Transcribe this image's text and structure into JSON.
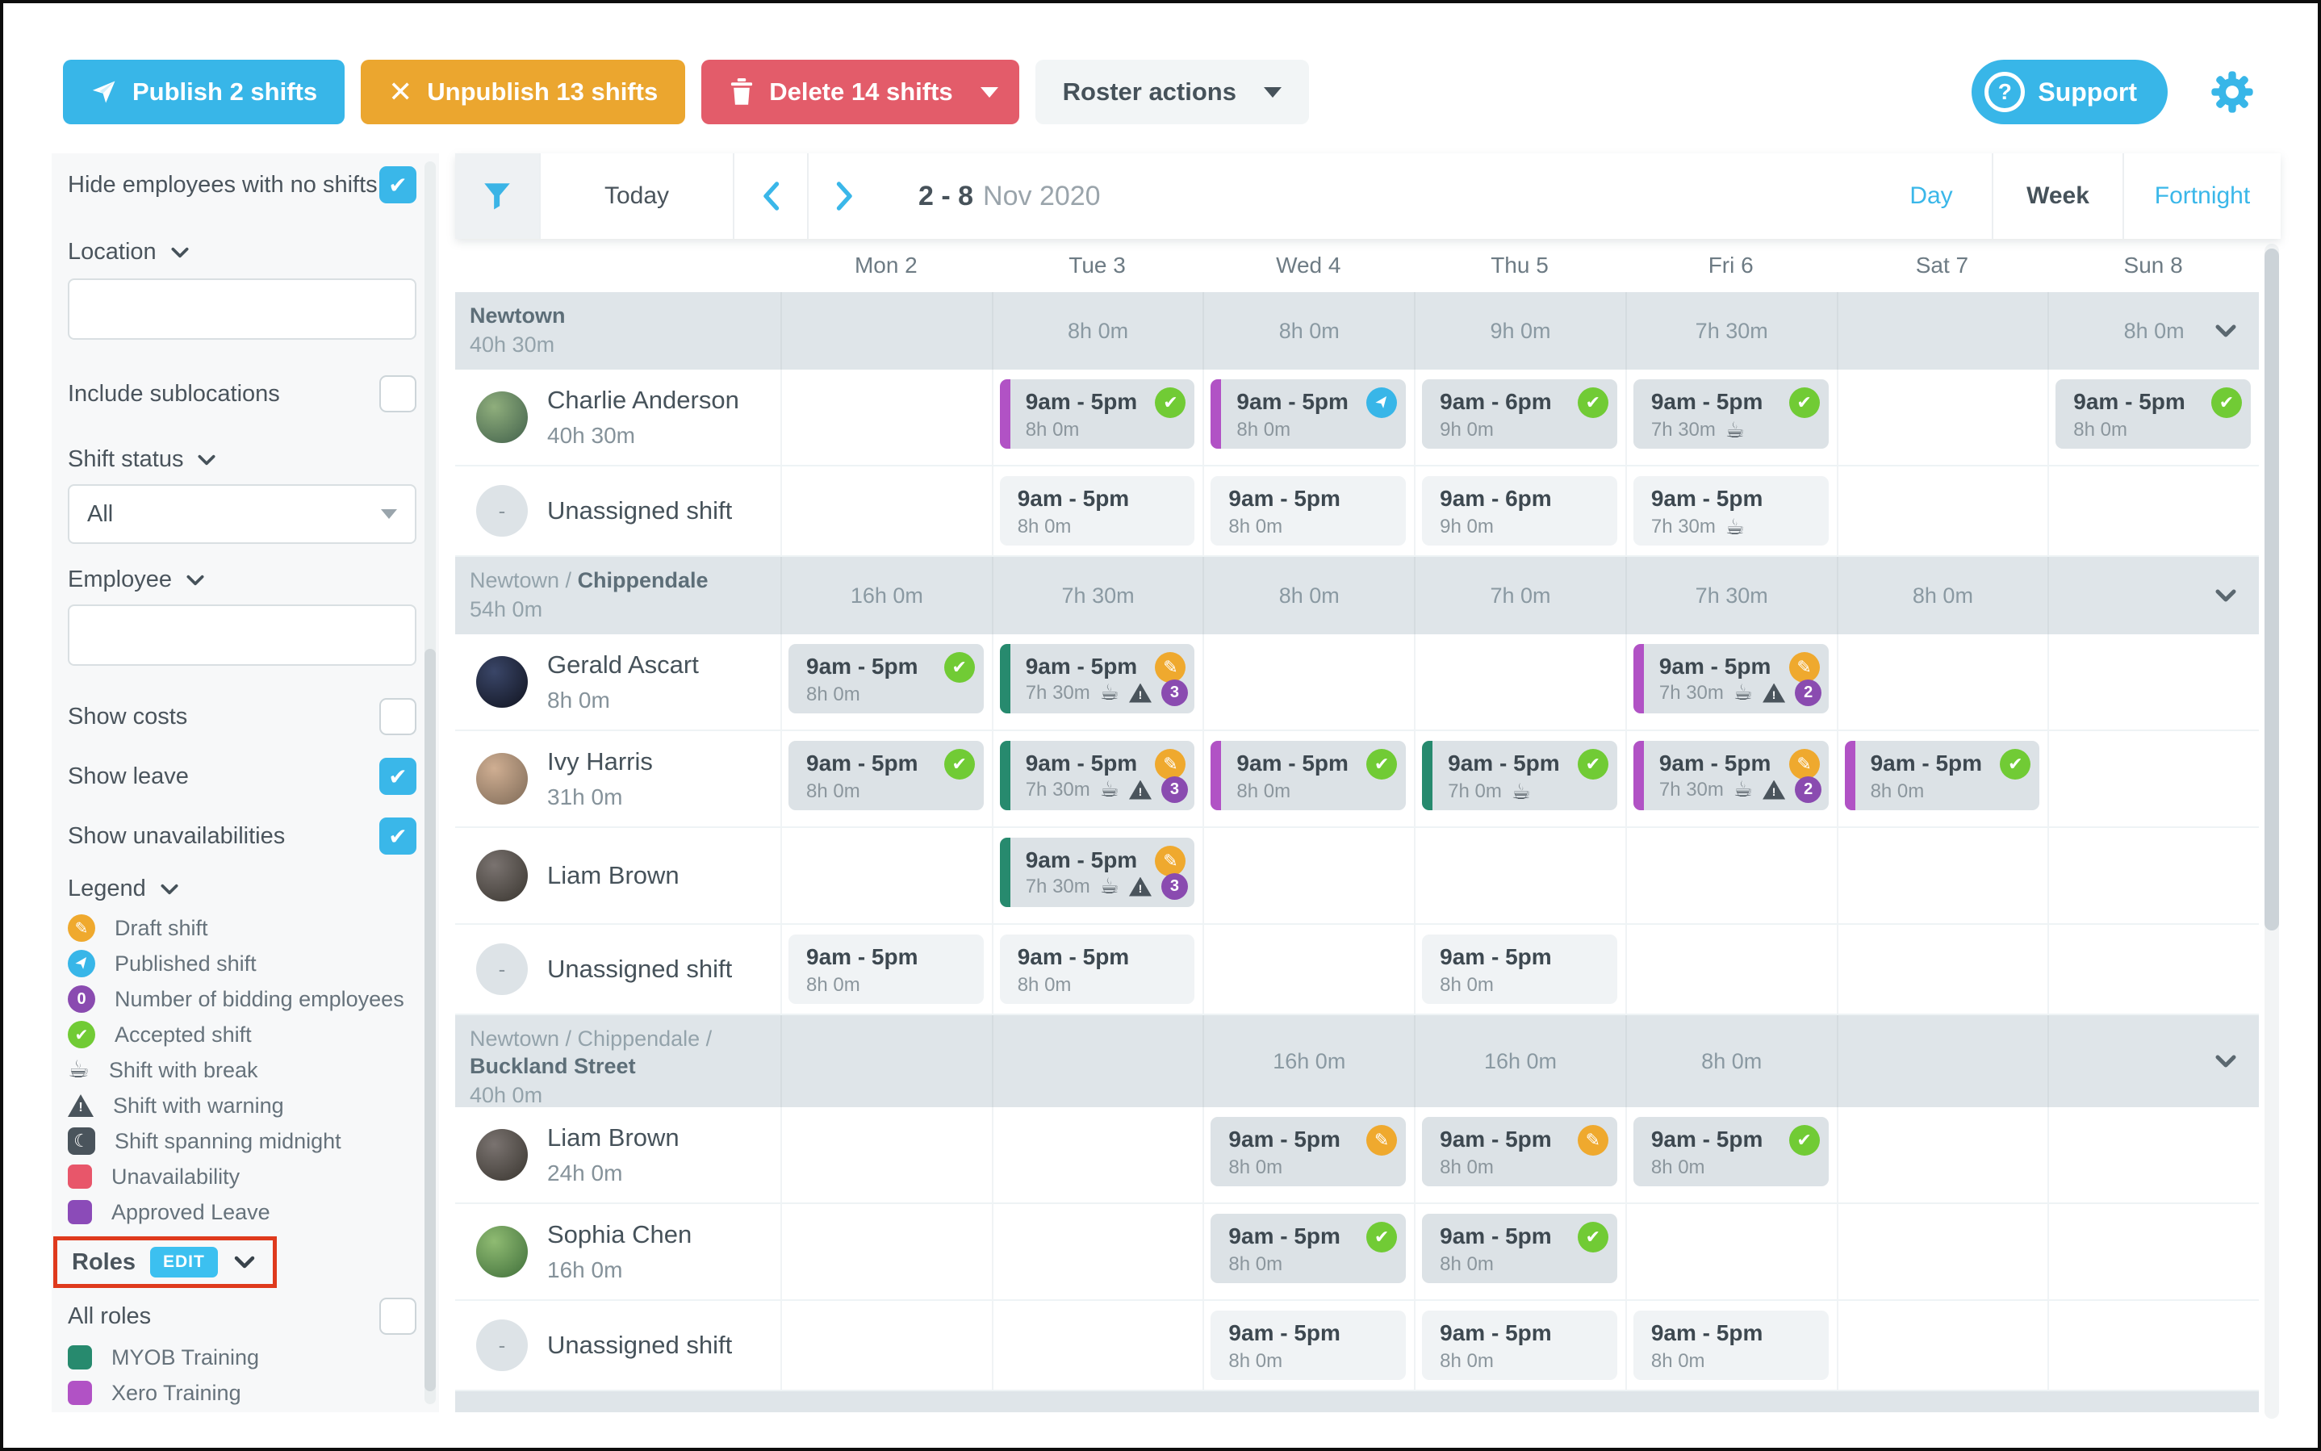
{
  "toolbar": {
    "publish_label": "Publish 2 shifts",
    "unpublish_label": "Unpublish 13 shifts",
    "delete_label": "Delete 14 shifts",
    "roster_actions_label": "Roster actions",
    "support_label": "Support"
  },
  "filterbar": {
    "today_label": "Today",
    "date_bold": "2 - 8",
    "date_rest": "Nov 2020",
    "view_day": "Day",
    "view_week": "Week",
    "view_fortnight": "Fortnight",
    "active_view": "Week"
  },
  "days": [
    "Mon 2",
    "Tue 3",
    "Wed 4",
    "Thu 5",
    "Fri 6",
    "Sat 7",
    "Sun 8"
  ],
  "sidebar": {
    "hide_employees_label": "Hide employees with no shifts",
    "hide_employees_checked": true,
    "location_label": "Location",
    "location_value": "",
    "include_sublocations_label": "Include sublocations",
    "include_sublocations_checked": false,
    "shift_status_label": "Shift status",
    "shift_status_value": "All",
    "employee_label": "Employee",
    "employee_value": "",
    "show_costs_label": "Show costs",
    "show_costs_checked": false,
    "show_leave_label": "Show leave",
    "show_leave_checked": true,
    "show_unavailabilities_label": "Show unavailabilities",
    "show_unavailabilities_checked": true,
    "legend_label": "Legend",
    "legend_items": [
      {
        "icon": "draft-icon",
        "label": "Draft shift"
      },
      {
        "icon": "published-icon",
        "label": "Published shift"
      },
      {
        "icon": "bids-badge-icon",
        "label": "Number of bidding employees",
        "value": "0"
      },
      {
        "icon": "accepted-icon",
        "label": "Accepted shift"
      },
      {
        "icon": "break-icon",
        "label": "Shift with break"
      },
      {
        "icon": "warning-icon",
        "label": "Shift with warning"
      },
      {
        "icon": "midnight-icon",
        "label": "Shift spanning midnight"
      },
      {
        "icon": "unavailability-swatch",
        "label": "Unavailability"
      },
      {
        "icon": "approved-leave-swatch",
        "label": "Approved Leave"
      }
    ],
    "roles_label": "Roles",
    "roles_edit_badge": "EDIT",
    "all_roles_label": "All roles",
    "all_roles_checked": false,
    "roles": [
      {
        "id": "myob",
        "label": "MYOB Training",
        "color": "#278a6e"
      },
      {
        "id": "xero",
        "label": "Xero Training",
        "color": "#b152c5"
      }
    ]
  },
  "colors": {
    "accent": "#38b6e8",
    "draft": "#efa92e",
    "accepted": "#71cb35",
    "published": "#38b6e8",
    "bids": "#8a4bb0",
    "warning_dark": "#4a545c",
    "unavailability": "#e8566a",
    "approved_leave": "#8b4bb8",
    "myob": "#278a6e",
    "xero": "#b152c5",
    "unpublish_orange": "#eba62f",
    "delete_red": "#e35c6a",
    "annotation_red": "#df3a1d"
  },
  "groups": [
    {
      "location_prefix": "",
      "location_name": "Newtown",
      "total_hours": "40h 30m",
      "day_totals": [
        "",
        "8h 0m",
        "8h 0m",
        "9h 0m",
        "7h 30m",
        "",
        "8h 0m"
      ],
      "rows": [
        {
          "name": "Charlie Anderson",
          "hours": "40h 30m",
          "avatar": [
            "#8fae7c",
            "#41604b"
          ],
          "shifts": [
            null,
            {
              "time": "9am - 5pm",
              "duration": "8h 0m",
              "status": "accepted",
              "role": "xero"
            },
            {
              "time": "9am - 5pm",
              "duration": "8h 0m",
              "status": "published",
              "role": "xero"
            },
            {
              "time": "9am - 6pm",
              "duration": "9h 0m",
              "status": "accepted"
            },
            {
              "time": "9am - 5pm",
              "duration": "7h 30m",
              "status": "accepted",
              "break": true
            },
            null,
            {
              "time": "9am - 5pm",
              "duration": "8h 0m",
              "status": "accepted"
            }
          ]
        },
        {
          "name": "Unassigned shift",
          "hours": "",
          "avatar": null,
          "shifts": [
            null,
            {
              "time": "9am - 5pm",
              "duration": "8h 0m",
              "unassigned": true
            },
            {
              "time": "9am - 5pm",
              "duration": "8h 0m",
              "unassigned": true
            },
            {
              "time": "9am - 6pm",
              "duration": "9h 0m",
              "unassigned": true
            },
            {
              "time": "9am - 5pm",
              "duration": "7h 30m",
              "unassigned": true,
              "break": true
            },
            null,
            null
          ]
        }
      ]
    },
    {
      "location_prefix": "Newtown / ",
      "location_name": "Chippendale",
      "total_hours": "54h 0m",
      "day_totals": [
        "16h 0m",
        "7h 30m",
        "8h 0m",
        "7h 0m",
        "7h 30m",
        "8h 0m",
        ""
      ],
      "rows": [
        {
          "name": "Gerald Ascart",
          "hours": "8h 0m",
          "avatar": [
            "#3a4668",
            "#10131f"
          ],
          "shifts": [
            {
              "time": "9am - 5pm",
              "duration": "8h 0m",
              "status": "accepted"
            },
            {
              "time": "9am - 5pm",
              "duration": "7h 30m",
              "status": "draft",
              "role": "myob",
              "break": true,
              "warning": true,
              "bids": "3"
            },
            null,
            null,
            {
              "time": "9am - 5pm",
              "duration": "7h 30m",
              "status": "draft",
              "role": "xero",
              "break": true,
              "warning": true,
              "bids": "2"
            },
            null,
            null
          ]
        },
        {
          "name": "Ivy Harris",
          "hours": "31h 0m",
          "avatar": [
            "#cfae92",
            "#7e6a57"
          ],
          "shifts": [
            {
              "time": "9am - 5pm",
              "duration": "8h 0m",
              "status": "accepted"
            },
            {
              "time": "9am - 5pm",
              "duration": "7h 30m",
              "status": "draft",
              "role": "myob",
              "break": true,
              "warning": true,
              "bids": "3"
            },
            {
              "time": "9am - 5pm",
              "duration": "8h 0m",
              "status": "accepted",
              "role": "xero"
            },
            {
              "time": "9am - 5pm",
              "duration": "7h 0m",
              "status": "accepted",
              "role": "myob",
              "break": true
            },
            {
              "time": "9am - 5pm",
              "duration": "7h 30m",
              "status": "draft",
              "role": "xero",
              "break": true,
              "warning": true,
              "bids": "2"
            },
            {
              "time": "9am - 5pm",
              "duration": "8h 0m",
              "status": "accepted",
              "role": "xero"
            },
            null
          ]
        },
        {
          "name": "Liam Brown",
          "hours": "",
          "avatar": [
            "#7a7370",
            "#39352f"
          ],
          "shifts": [
            null,
            {
              "time": "9am - 5pm",
              "duration": "7h 30m",
              "status": "draft",
              "role": "myob",
              "break": true,
              "warning": true,
              "bids": "3"
            },
            null,
            null,
            null,
            null,
            null
          ]
        },
        {
          "name": "Unassigned shift",
          "hours": "",
          "avatar": null,
          "shifts": [
            {
              "time": "9am - 5pm",
              "duration": "8h 0m",
              "unassigned": true
            },
            {
              "time": "9am - 5pm",
              "duration": "8h 0m",
              "unassigned": true
            },
            null,
            {
              "time": "9am - 5pm",
              "duration": "8h 0m",
              "unassigned": true
            },
            null,
            null,
            null
          ]
        }
      ]
    },
    {
      "location_prefix": "Newtown / Chippendale / ",
      "location_name": "Buckland Street",
      "total_hours": "40h 0m",
      "day_totals": [
        "",
        "",
        "16h 0m",
        "16h 0m",
        "8h 0m",
        "",
        ""
      ],
      "rows": [
        {
          "name": "Liam Brown",
          "hours": "24h 0m",
          "avatar": [
            "#7a7370",
            "#39352f"
          ],
          "shifts": [
            null,
            null,
            {
              "time": "9am - 5pm",
              "duration": "8h 0m",
              "status": "draft"
            },
            {
              "time": "9am - 5pm",
              "duration": "8h 0m",
              "status": "draft"
            },
            {
              "time": "9am - 5pm",
              "duration": "8h 0m",
              "status": "accepted"
            },
            null,
            null
          ]
        },
        {
          "name": "Sophia Chen",
          "hours": "16h 0m",
          "avatar": [
            "#8fbb72",
            "#3f6e3a"
          ],
          "shifts": [
            null,
            null,
            {
              "time": "9am - 5pm",
              "duration": "8h 0m",
              "status": "accepted"
            },
            {
              "time": "9am - 5pm",
              "duration": "8h 0m",
              "status": "accepted"
            },
            null,
            null,
            null
          ]
        },
        {
          "name": "Unassigned shift",
          "hours": "",
          "avatar": null,
          "shifts": [
            null,
            null,
            {
              "time": "9am - 5pm",
              "duration": "8h 0m",
              "unassigned": true
            },
            {
              "time": "9am - 5pm",
              "duration": "8h 0m",
              "unassigned": true
            },
            {
              "time": "9am - 5pm",
              "duration": "8h 0m",
              "unassigned": true
            },
            null,
            null
          ]
        }
      ]
    }
  ]
}
